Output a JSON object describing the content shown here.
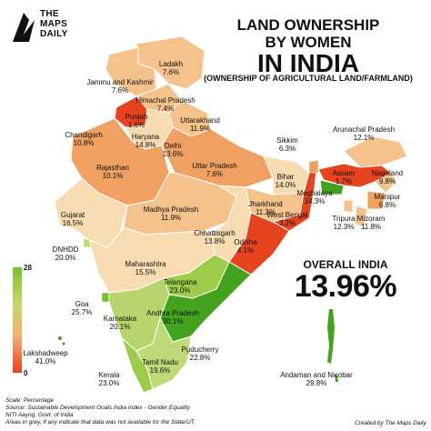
{
  "brand": {
    "name_line1": "THE",
    "name_line2": "MAPS",
    "name_line3": "DAILY"
  },
  "title": {
    "line1": "LAND OWNERSHIP",
    "line2": "BY WOMEN",
    "line3": "IN INDIA",
    "line4": "(OWNERSHIP OF AGRICULTURAL LAND/FARMLAND)"
  },
  "overall": {
    "label": "OVERALL INDIA",
    "value": "13.96%"
  },
  "legend": {
    "max": "28",
    "min": "0"
  },
  "states": [
    {
      "name": "Ladakh",
      "value": "7.6%"
    },
    {
      "name": "Jammu and Kashmir",
      "value": "7.6%"
    },
    {
      "name": "Himachal Pradesh",
      "value": "7.4%"
    },
    {
      "name": "Punjab",
      "value": "1.6%"
    },
    {
      "name": "Uttarakhand",
      "value": "11.9%"
    },
    {
      "name": "Chandigarh",
      "value": "10.8%"
    },
    {
      "name": "Haryana",
      "value": "14.8%"
    },
    {
      "name": "Delhi",
      "value": "13.6%"
    },
    {
      "name": "Rajasthan",
      "value": "10.1%"
    },
    {
      "name": "Uttar Pradesh",
      "value": "7.6%"
    },
    {
      "name": "Bihar",
      "value": "14.0%"
    },
    {
      "name": "Sikkim",
      "value": "6.3%"
    },
    {
      "name": "Arunachal Pradesh",
      "value": "12.1%"
    },
    {
      "name": "Assam",
      "value": "1.7%"
    },
    {
      "name": "Nagaland",
      "value": "9.8%"
    },
    {
      "name": "Meghalaya",
      "value": "34.3%"
    },
    {
      "name": "Manipur",
      "value": "6.8%"
    },
    {
      "name": "Tripura",
      "value": "12.3%"
    },
    {
      "name": "Mizoram",
      "value": "11.8%"
    },
    {
      "name": "West Bengal",
      "value": "3.2%"
    },
    {
      "name": "Jharkhand",
      "value": "11.3%"
    },
    {
      "name": "Odisha",
      "value": "4.1%"
    },
    {
      "name": "Gujarat",
      "value": "16.5%"
    },
    {
      "name": "Madhya Pradesh",
      "value": "11.9%"
    },
    {
      "name": "Chhattisgarh",
      "value": "13.8%"
    },
    {
      "name": "DNHDD",
      "value": "20.0%"
    },
    {
      "name": "Maharashtra",
      "value": "15.5%"
    },
    {
      "name": "Telangana",
      "value": "23.0%"
    },
    {
      "name": "Goa",
      "value": "25.7%"
    },
    {
      "name": "Karnataka",
      "value": "20.1%"
    },
    {
      "name": "Andhra Pradesh",
      "value": "30.1%"
    },
    {
      "name": "Lakshadweep",
      "value": "41.0%"
    },
    {
      "name": "Kerala",
      "value": "23.0%"
    },
    {
      "name": "Tamil Nadu",
      "value": "19.6%"
    },
    {
      "name": "Puducherry",
      "value": "22.8%"
    },
    {
      "name": "Andaman and Nicobar",
      "value": "29.8%"
    }
  ],
  "footer": {
    "scale": "Scale: Percentage",
    "source1": "Source: Sustainable Development Goals India Index - Gender Equality",
    "source2": "NITI Aayog, Govt. of India",
    "note": "Areas in grey, if any indicate that data was not available for the State/UT.",
    "credit": "Created by The Maps Daily"
  },
  "colors": {
    "dark_green": "#43a31f",
    "green": "#7bbf2a",
    "light_green": "#c0d977",
    "pale": "#f6dcb0",
    "light_orange": "#f4c28a",
    "orange": "#f0a060",
    "red_orange": "#e8431f"
  }
}
